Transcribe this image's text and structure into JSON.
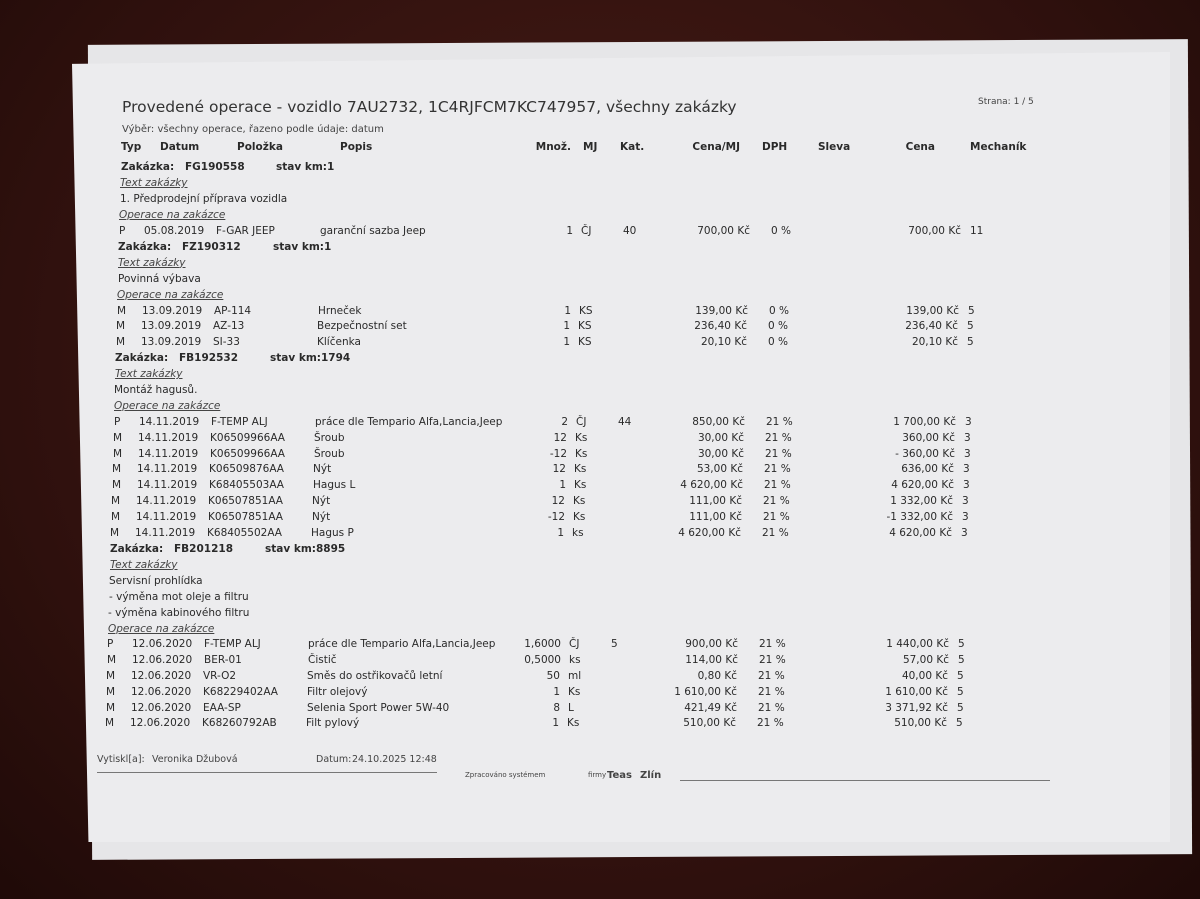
{
  "header": {
    "title": "Provedené operace - vozidlo 7AU2732, 1C4RJFCM7KC747957, všechny zakázky",
    "subtitle": "Výběr:  všechny operace,  řazeno podle údaje: datum",
    "page": "Strana: 1 / 5"
  },
  "columns": {
    "typ": "Typ",
    "datum": "Datum",
    "polozka": "Položka",
    "popis": "Popis",
    "mnoz": "Množ.",
    "mj": "MJ",
    "kat": "Kat.",
    "cena_mj": "Cena/MJ",
    "dph": "DPH",
    "sleva": "Sleva",
    "cena": "Cena",
    "mechanik": "Mechaník"
  },
  "labels": {
    "zakazka": "Zakázka:",
    "stav_km": "stav km:",
    "text_zakazky": "Text zakázky",
    "operace": "Operace na zakázce"
  },
  "orders": [
    {
      "id": "FG190558",
      "km": "1",
      "text": [
        "1. Předprodejní příprava vozidla"
      ],
      "ops": [
        [
          "P",
          "05.08.2019",
          "F-GAR JEEP",
          "garanční sazba Jeep",
          "1",
          "ČJ",
          "40",
          "700,00 Kč",
          "0 %",
          "",
          "700,00 Kč",
          "11"
        ]
      ]
    },
    {
      "id": "FZ190312",
      "km": "1",
      "text": [
        "Povinná výbava"
      ],
      "ops": [
        [
          "M",
          "13.09.2019",
          "AP-114",
          "Hrneček",
          "1",
          "KS",
          "",
          "139,00 Kč",
          "0 %",
          "",
          "139,00 Kč",
          "5"
        ],
        [
          "M",
          "13.09.2019",
          "AZ-13",
          "Bezpečnostní set",
          "1",
          "KS",
          "",
          "236,40 Kč",
          "0 %",
          "",
          "236,40 Kč",
          "5"
        ],
        [
          "M",
          "13.09.2019",
          "SI-33",
          "Klíčenka",
          "1",
          "KS",
          "",
          "20,10 Kč",
          "0 %",
          "",
          "20,10 Kč",
          "5"
        ]
      ]
    },
    {
      "id": "FB192532",
      "km": "1794",
      "text": [
        "Montáž hagusů."
      ],
      "ops": [
        [
          "P",
          "14.11.2019",
          "F-TEMP ALJ",
          "práce dle Tempario Alfa,Lancia,Jeep",
          "2",
          "ČJ",
          "44",
          "850,00 Kč",
          "21 %",
          "",
          "1 700,00 Kč",
          "3"
        ],
        [
          "M",
          "14.11.2019",
          "K06509966AA",
          "Šroub",
          "12",
          "Ks",
          "",
          "30,00 Kč",
          "21 %",
          "",
          "360,00 Kč",
          "3"
        ],
        [
          "M",
          "14.11.2019",
          "K06509966AA",
          "Šroub",
          "-12",
          "Ks",
          "",
          "30,00 Kč",
          "21 %",
          "",
          "- 360,00 Kč",
          "3"
        ],
        [
          "M",
          "14.11.2019",
          "K06509876AA",
          "Nýt",
          "12",
          "Ks",
          "",
          "53,00 Kč",
          "21 %",
          "",
          "636,00 Kč",
          "3"
        ],
        [
          "M",
          "14.11.2019",
          "K68405503AA",
          "Hagus L",
          "1",
          "Ks",
          "",
          "4 620,00 Kč",
          "21 %",
          "",
          "4 620,00 Kč",
          "3"
        ],
        [
          "M",
          "14.11.2019",
          "K06507851AA",
          "Nýt",
          "12",
          "Ks",
          "",
          "111,00 Kč",
          "21 %",
          "",
          "1 332,00 Kč",
          "3"
        ],
        [
          "M",
          "14.11.2019",
          "K06507851AA",
          "Nýt",
          "-12",
          "Ks",
          "",
          "111,00 Kč",
          "21 %",
          "",
          "-1 332,00 Kč",
          "3"
        ],
        [
          "M",
          "14.11.2019",
          "K68405502AA",
          "Hagus P",
          "1",
          "ks",
          "",
          "4 620,00 Kč",
          "21 %",
          "",
          "4 620,00 Kč",
          "3"
        ]
      ]
    },
    {
      "id": "FB201218",
      "km": "8895",
      "text": [
        "Servisní prohlídka",
        "- výměna mot oleje a filtru",
        "- výměna kabinového filtru"
      ],
      "ops": [
        [
          "P",
          "12.06.2020",
          "F-TEMP ALJ",
          "práce dle Tempario Alfa,Lancia,Jeep",
          "1,6000",
          "ČJ",
          "5",
          "900,00 Kč",
          "21 %",
          "",
          "1 440,00 Kč",
          "5"
        ],
        [
          "M",
          "12.06.2020",
          "BER-01",
          "Čistič",
          "0,5000",
          "ks",
          "",
          "114,00 Kč",
          "21 %",
          "",
          "57,00 Kč",
          "5"
        ],
        [
          "M",
          "12.06.2020",
          "VR-O2",
          "Směs do ostřikovačů letní",
          "50",
          "ml",
          "",
          "0,80 Kč",
          "21 %",
          "",
          "40,00 Kč",
          "5"
        ],
        [
          "M",
          "12.06.2020",
          "K68229402AA",
          "Filtr olejový",
          "1",
          "Ks",
          "",
          "1 610,00 Kč",
          "21 %",
          "",
          "1 610,00 Kč",
          "5"
        ],
        [
          "M",
          "12.06.2020",
          "EAA-SP",
          "Selenia Sport Power 5W-40",
          "8",
          "L",
          "",
          "421,49 Kč",
          "21 %",
          "",
          "3 371,92 Kč",
          "5"
        ],
        [
          "M",
          "12.06.2020",
          "K68260792AB",
          "Filt pylový",
          "1",
          "Ks",
          "",
          "510,00 Kč",
          "21 %",
          "",
          "510,00 Kč",
          "5"
        ]
      ]
    }
  ],
  "footer": {
    "printed_label": "Vytiskl[a]:",
    "printed_by": "Veronika Džubová",
    "date_label": "Datum:",
    "date": "24.10.2025   12:48",
    "processed": "Zpracováno systémem",
    "firm": "firmy",
    "brand1": "Teas",
    "brand2": "Zlín"
  }
}
